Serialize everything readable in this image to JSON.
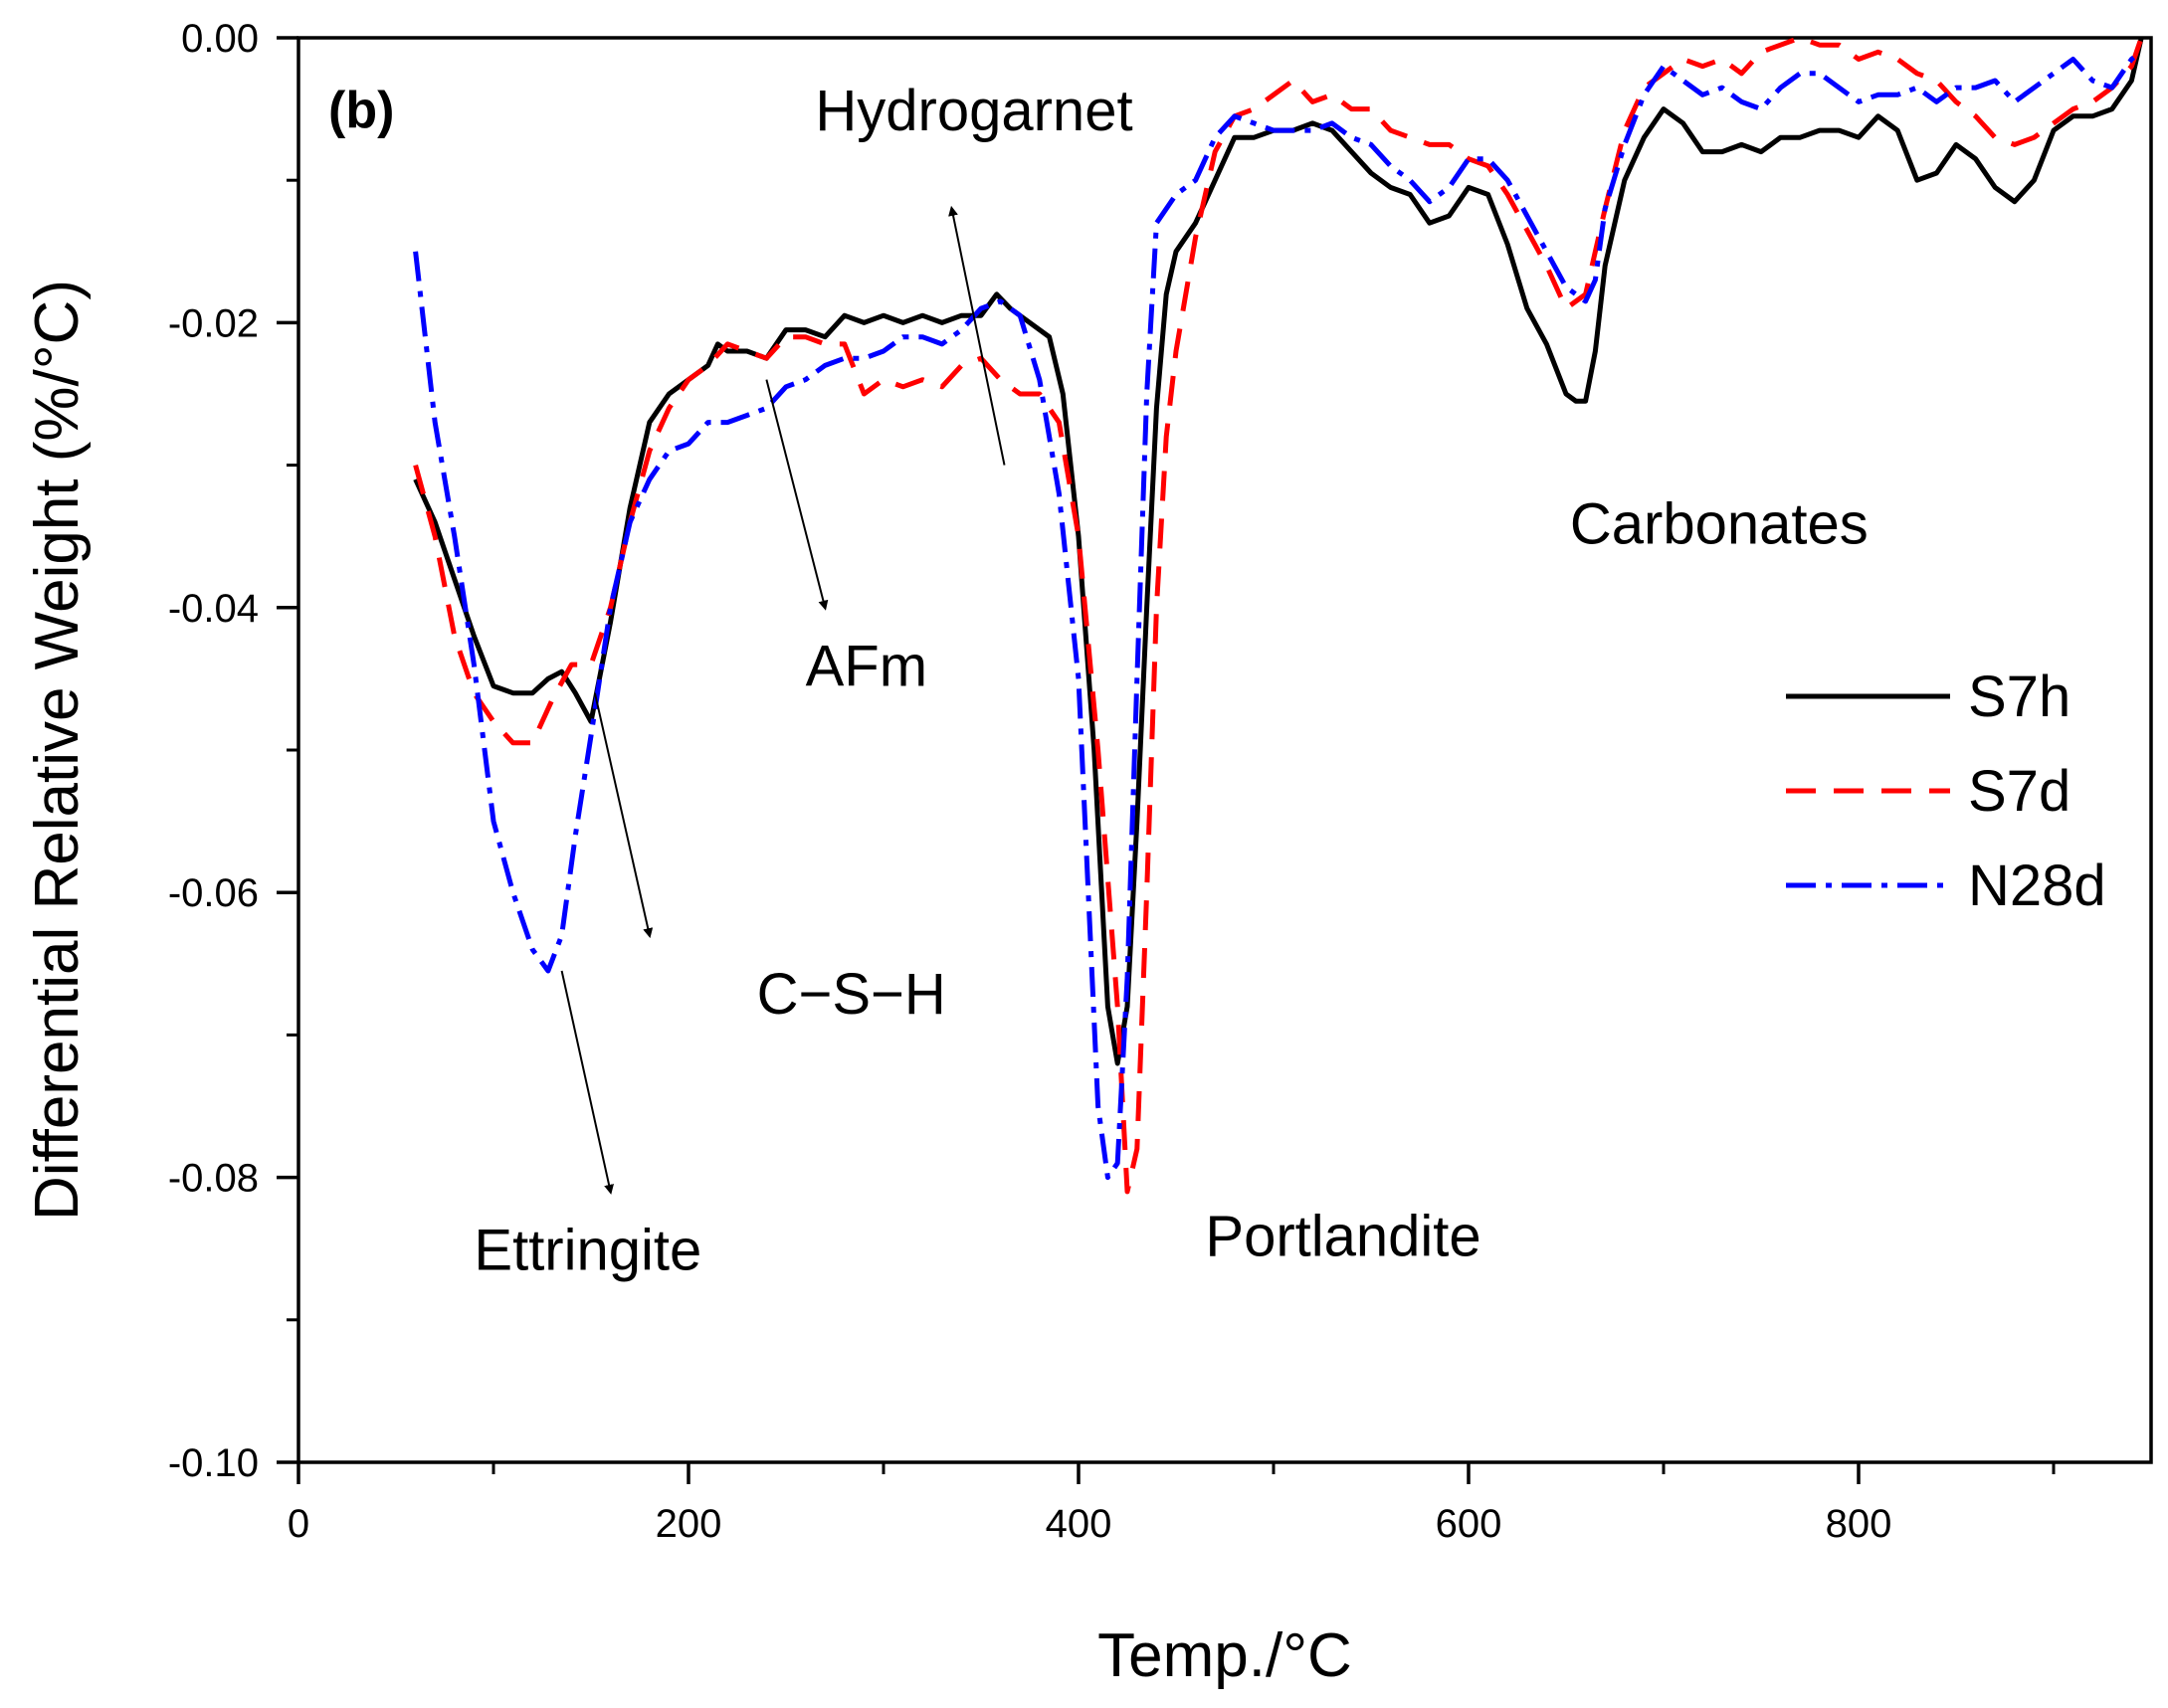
{
  "chart_data": {
    "type": "line",
    "panel_label": "(b)",
    "xlabel": "Temp./°C",
    "ylabel": "Differential Relative Weight (%/°C)",
    "xlim": [
      0,
      950
    ],
    "ylim": [
      -0.1,
      0.0
    ],
    "x_ticks": [
      0,
      200,
      400,
      600,
      800
    ],
    "x_tick_labels": [
      "0",
      "200",
      "400",
      "600",
      "800"
    ],
    "y_ticks": [
      0.0,
      -0.02,
      -0.04,
      -0.06,
      -0.08,
      -0.1
    ],
    "y_tick_labels": [
      "0.00",
      "-0.02",
      "-0.04",
      "-0.06",
      "-0.08",
      "-0.10"
    ],
    "legend_position": "right",
    "series": [
      {
        "name": "S7h",
        "color": "#000000",
        "style": "solid",
        "points": [
          [
            60,
            -0.031
          ],
          [
            70,
            -0.034
          ],
          [
            80,
            -0.038
          ],
          [
            90,
            -0.042
          ],
          [
            100,
            -0.0455
          ],
          [
            110,
            -0.046
          ],
          [
            120,
            -0.046
          ],
          [
            128,
            -0.045
          ],
          [
            135,
            -0.0445
          ],
          [
            142,
            -0.046
          ],
          [
            150,
            -0.048
          ],
          [
            160,
            -0.041
          ],
          [
            170,
            -0.033
          ],
          [
            180,
            -0.027
          ],
          [
            190,
            -0.025
          ],
          [
            200,
            -0.024
          ],
          [
            210,
            -0.023
          ],
          [
            215,
            -0.0215
          ],
          [
            220,
            -0.022
          ],
          [
            230,
            -0.022
          ],
          [
            240,
            -0.0225
          ],
          [
            250,
            -0.0205
          ],
          [
            260,
            -0.0205
          ],
          [
            270,
            -0.021
          ],
          [
            280,
            -0.0195
          ],
          [
            290,
            -0.02
          ],
          [
            300,
            -0.0195
          ],
          [
            310,
            -0.02
          ],
          [
            320,
            -0.0195
          ],
          [
            330,
            -0.02
          ],
          [
            340,
            -0.0195
          ],
          [
            350,
            -0.0195
          ],
          [
            358,
            -0.018
          ],
          [
            365,
            -0.019
          ],
          [
            375,
            -0.02
          ],
          [
            385,
            -0.021
          ],
          [
            392,
            -0.025
          ],
          [
            400,
            -0.035
          ],
          [
            408,
            -0.05
          ],
          [
            415,
            -0.068
          ],
          [
            420,
            -0.072
          ],
          [
            425,
            -0.068
          ],
          [
            430,
            -0.055
          ],
          [
            435,
            -0.04
          ],
          [
            440,
            -0.026
          ],
          [
            445,
            -0.018
          ],
          [
            450,
            -0.015
          ],
          [
            460,
            -0.013
          ],
          [
            470,
            -0.01
          ],
          [
            480,
            -0.007
          ],
          [
            490,
            -0.007
          ],
          [
            500,
            -0.0065
          ],
          [
            510,
            -0.0065
          ],
          [
            520,
            -0.006
          ],
          [
            530,
            -0.0065
          ],
          [
            540,
            -0.008
          ],
          [
            550,
            -0.0095
          ],
          [
            560,
            -0.0105
          ],
          [
            570,
            -0.011
          ],
          [
            580,
            -0.013
          ],
          [
            590,
            -0.0125
          ],
          [
            600,
            -0.0105
          ],
          [
            610,
            -0.011
          ],
          [
            620,
            -0.0145
          ],
          [
            630,
            -0.019
          ],
          [
            640,
            -0.0215
          ],
          [
            650,
            -0.025
          ],
          [
            655,
            -0.0255
          ],
          [
            660,
            -0.0255
          ],
          [
            665,
            -0.022
          ],
          [
            670,
            -0.016
          ],
          [
            680,
            -0.01
          ],
          [
            690,
            -0.007
          ],
          [
            700,
            -0.005
          ],
          [
            710,
            -0.006
          ],
          [
            720,
            -0.008
          ],
          [
            730,
            -0.008
          ],
          [
            740,
            -0.0075
          ],
          [
            750,
            -0.008
          ],
          [
            760,
            -0.007
          ],
          [
            770,
            -0.007
          ],
          [
            780,
            -0.0065
          ],
          [
            790,
            -0.0065
          ],
          [
            800,
            -0.007
          ],
          [
            810,
            -0.0055
          ],
          [
            820,
            -0.0065
          ],
          [
            830,
            -0.01
          ],
          [
            840,
            -0.0095
          ],
          [
            850,
            -0.0075
          ],
          [
            860,
            -0.0085
          ],
          [
            870,
            -0.0105
          ],
          [
            880,
            -0.0115
          ],
          [
            890,
            -0.01
          ],
          [
            900,
            -0.0065
          ],
          [
            910,
            -0.0055
          ],
          [
            920,
            -0.0055
          ],
          [
            930,
            -0.005
          ],
          [
            940,
            -0.003
          ],
          [
            945,
            0.0
          ]
        ]
      },
      {
        "name": "S7d",
        "color": "#ff0000",
        "style": "dashed",
        "points": [
          [
            60,
            -0.03
          ],
          [
            70,
            -0.035
          ],
          [
            80,
            -0.042
          ],
          [
            90,
            -0.046
          ],
          [
            100,
            -0.048
          ],
          [
            110,
            -0.0495
          ],
          [
            120,
            -0.0495
          ],
          [
            130,
            -0.0465
          ],
          [
            140,
            -0.044
          ],
          [
            150,
            -0.044
          ],
          [
            160,
            -0.04
          ],
          [
            170,
            -0.034
          ],
          [
            180,
            -0.029
          ],
          [
            190,
            -0.026
          ],
          [
            200,
            -0.024
          ],
          [
            210,
            -0.023
          ],
          [
            220,
            -0.0215
          ],
          [
            230,
            -0.022
          ],
          [
            240,
            -0.0225
          ],
          [
            250,
            -0.021
          ],
          [
            260,
            -0.021
          ],
          [
            270,
            -0.0215
          ],
          [
            280,
            -0.0215
          ],
          [
            290,
            -0.025
          ],
          [
            300,
            -0.024
          ],
          [
            310,
            -0.0245
          ],
          [
            320,
            -0.024
          ],
          [
            330,
            -0.0245
          ],
          [
            340,
            -0.023
          ],
          [
            350,
            -0.0225
          ],
          [
            360,
            -0.024
          ],
          [
            370,
            -0.025
          ],
          [
            380,
            -0.025
          ],
          [
            390,
            -0.027
          ],
          [
            400,
            -0.035
          ],
          [
            410,
            -0.05
          ],
          [
            420,
            -0.068
          ],
          [
            425,
            -0.081
          ],
          [
            430,
            -0.078
          ],
          [
            435,
            -0.06
          ],
          [
            440,
            -0.04
          ],
          [
            445,
            -0.028
          ],
          [
            450,
            -0.022
          ],
          [
            460,
            -0.014
          ],
          [
            470,
            -0.008
          ],
          [
            480,
            -0.0055
          ],
          [
            490,
            -0.005
          ],
          [
            500,
            -0.004
          ],
          [
            510,
            -0.003
          ],
          [
            520,
            -0.0045
          ],
          [
            530,
            -0.004
          ],
          [
            540,
            -0.005
          ],
          [
            550,
            -0.005
          ],
          [
            560,
            -0.0065
          ],
          [
            570,
            -0.007
          ],
          [
            580,
            -0.0075
          ],
          [
            590,
            -0.0075
          ],
          [
            600,
            -0.0085
          ],
          [
            610,
            -0.009
          ],
          [
            620,
            -0.011
          ],
          [
            630,
            -0.0135
          ],
          [
            640,
            -0.016
          ],
          [
            650,
            -0.019
          ],
          [
            660,
            -0.018
          ],
          [
            670,
            -0.012
          ],
          [
            680,
            -0.0065
          ],
          [
            690,
            -0.0035
          ],
          [
            700,
            -0.0025
          ],
          [
            710,
            -0.0015
          ],
          [
            720,
            -0.002
          ],
          [
            730,
            -0.0015
          ],
          [
            740,
            -0.0025
          ],
          [
            750,
            -0.001
          ],
          [
            760,
            -0.0005
          ],
          [
            770,
            0.0
          ],
          [
            780,
            -0.0005
          ],
          [
            790,
            -0.0005
          ],
          [
            800,
            -0.0015
          ],
          [
            810,
            -0.001
          ],
          [
            820,
            -0.0015
          ],
          [
            830,
            -0.0025
          ],
          [
            840,
            -0.003
          ],
          [
            850,
            -0.0045
          ],
          [
            860,
            -0.0055
          ],
          [
            870,
            -0.007
          ],
          [
            880,
            -0.0075
          ],
          [
            890,
            -0.007
          ],
          [
            900,
            -0.006
          ],
          [
            910,
            -0.005
          ],
          [
            920,
            -0.0045
          ],
          [
            930,
            -0.0035
          ],
          [
            940,
            -0.002
          ],
          [
            945,
            0.0
          ]
        ]
      },
      {
        "name": "N28d",
        "color": "#0000ff",
        "style": "dashdot",
        "points": [
          [
            60,
            -0.015
          ],
          [
            70,
            -0.027
          ],
          [
            80,
            -0.035
          ],
          [
            90,
            -0.044
          ],
          [
            100,
            -0.055
          ],
          [
            110,
            -0.06
          ],
          [
            120,
            -0.064
          ],
          [
            128,
            -0.0655
          ],
          [
            135,
            -0.063
          ],
          [
            142,
            -0.056
          ],
          [
            150,
            -0.049
          ],
          [
            160,
            -0.04
          ],
          [
            170,
            -0.034
          ],
          [
            180,
            -0.031
          ],
          [
            190,
            -0.029
          ],
          [
            200,
            -0.0285
          ],
          [
            210,
            -0.027
          ],
          [
            220,
            -0.027
          ],
          [
            230,
            -0.0265
          ],
          [
            240,
            -0.026
          ],
          [
            250,
            -0.0245
          ],
          [
            260,
            -0.024
          ],
          [
            270,
            -0.023
          ],
          [
            280,
            -0.0225
          ],
          [
            290,
            -0.0225
          ],
          [
            300,
            -0.022
          ],
          [
            310,
            -0.021
          ],
          [
            320,
            -0.021
          ],
          [
            330,
            -0.0215
          ],
          [
            340,
            -0.0205
          ],
          [
            350,
            -0.019
          ],
          [
            360,
            -0.0185
          ],
          [
            370,
            -0.0195
          ],
          [
            380,
            -0.024
          ],
          [
            390,
            -0.032
          ],
          [
            400,
            -0.045
          ],
          [
            405,
            -0.06
          ],
          [
            410,
            -0.075
          ],
          [
            415,
            -0.08
          ],
          [
            420,
            -0.079
          ],
          [
            425,
            -0.066
          ],
          [
            430,
            -0.045
          ],
          [
            435,
            -0.025
          ],
          [
            440,
            -0.013
          ],
          [
            450,
            -0.011
          ],
          [
            460,
            -0.01
          ],
          [
            470,
            -0.007
          ],
          [
            480,
            -0.0055
          ],
          [
            490,
            -0.006
          ],
          [
            500,
            -0.0065
          ],
          [
            510,
            -0.0065
          ],
          [
            520,
            -0.0065
          ],
          [
            530,
            -0.006
          ],
          [
            540,
            -0.007
          ],
          [
            550,
            -0.0075
          ],
          [
            560,
            -0.009
          ],
          [
            570,
            -0.01
          ],
          [
            580,
            -0.0115
          ],
          [
            590,
            -0.0105
          ],
          [
            600,
            -0.0085
          ],
          [
            610,
            -0.0085
          ],
          [
            620,
            -0.01
          ],
          [
            630,
            -0.0125
          ],
          [
            640,
            -0.015
          ],
          [
            650,
            -0.0175
          ],
          [
            660,
            -0.0185
          ],
          [
            665,
            -0.017
          ],
          [
            670,
            -0.012
          ],
          [
            680,
            -0.0075
          ],
          [
            690,
            -0.004
          ],
          [
            700,
            -0.002
          ],
          [
            710,
            -0.003
          ],
          [
            720,
            -0.004
          ],
          [
            730,
            -0.0035
          ],
          [
            740,
            -0.0045
          ],
          [
            750,
            -0.005
          ],
          [
            760,
            -0.0035
          ],
          [
            770,
            -0.0025
          ],
          [
            780,
            -0.0025
          ],
          [
            790,
            -0.0035
          ],
          [
            800,
            -0.0045
          ],
          [
            810,
            -0.004
          ],
          [
            820,
            -0.004
          ],
          [
            830,
            -0.0035
          ],
          [
            840,
            -0.0045
          ],
          [
            850,
            -0.0035
          ],
          [
            860,
            -0.0035
          ],
          [
            870,
            -0.003
          ],
          [
            880,
            -0.0045
          ],
          [
            890,
            -0.0035
          ],
          [
            900,
            -0.0025
          ],
          [
            910,
            -0.0015
          ],
          [
            920,
            -0.003
          ],
          [
            930,
            -0.0035
          ],
          [
            940,
            -0.0015
          ],
          [
            945,
            -0.001
          ]
        ]
      }
    ],
    "annotations": [
      {
        "text": "Hydrogarnet",
        "x": 265,
        "y": -0.0065,
        "arrow_from": [
          362,
          -0.03
        ],
        "arrow_to": [
          335,
          -0.012
        ]
      },
      {
        "text": "AFm",
        "x": 260,
        "y": -0.0455,
        "arrow_from": [
          240,
          -0.024
        ],
        "arrow_to": [
          270,
          -0.04
        ]
      },
      {
        "text": "C−S−H",
        "x": 235,
        "y": -0.0685,
        "arrow_from": [
          152,
          -0.046
        ],
        "arrow_to": [
          180,
          -0.063
        ]
      },
      {
        "text": "Ettringite",
        "x": 90,
        "y": -0.0865,
        "arrow_from": [
          135,
          -0.0655
        ],
        "arrow_to": [
          160,
          -0.081
        ]
      },
      {
        "text": "Portlandite",
        "x": 465,
        "y": -0.0855,
        "arrow_from": null,
        "arrow_to": null
      },
      {
        "text": "Carbonates",
        "x": 652,
        "y": -0.0355,
        "arrow_from": null,
        "arrow_to": null
      }
    ]
  }
}
